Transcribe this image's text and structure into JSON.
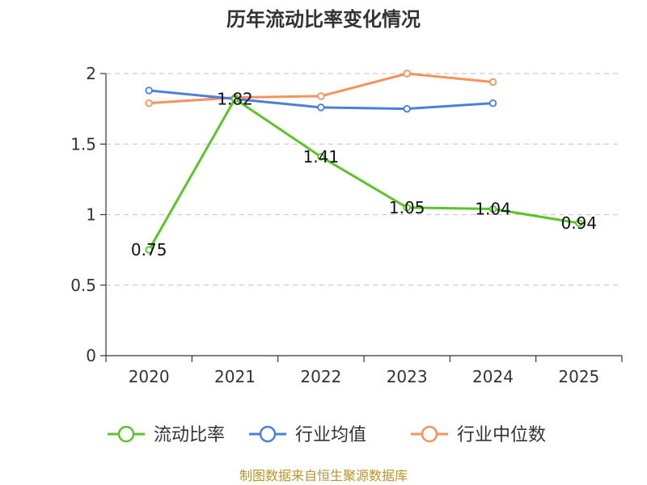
{
  "chart_data": {
    "type": "line",
    "title": "历年流动比率变化情况",
    "categories": [
      "2020",
      "2021",
      "2022",
      "2023",
      "2024",
      "2025"
    ],
    "y_ticks": [
      "0",
      "0.5",
      "1",
      "1.5",
      "2"
    ],
    "ylim": [
      0,
      2
    ],
    "grid": true,
    "legend_position": "bottom",
    "series": [
      {
        "name": "流动比率",
        "color": "#5cc42a",
        "values": [
          0.75,
          1.82,
          1.41,
          1.05,
          1.04,
          0.94
        ],
        "labels": [
          "0.75",
          "1.82",
          "1.41",
          "1.05",
          "1.04",
          "0.94"
        ]
      },
      {
        "name": "行业均值",
        "color": "#4a7fdc",
        "values": [
          1.88,
          1.82,
          1.76,
          1.75,
          1.79,
          null
        ]
      },
      {
        "name": "行业中位数",
        "color": "#f5935a",
        "values": [
          1.79,
          1.83,
          1.84,
          2.0,
          1.94,
          null
        ]
      }
    ]
  },
  "footer": {
    "source": "制图数据来自恒生聚源数据库"
  }
}
